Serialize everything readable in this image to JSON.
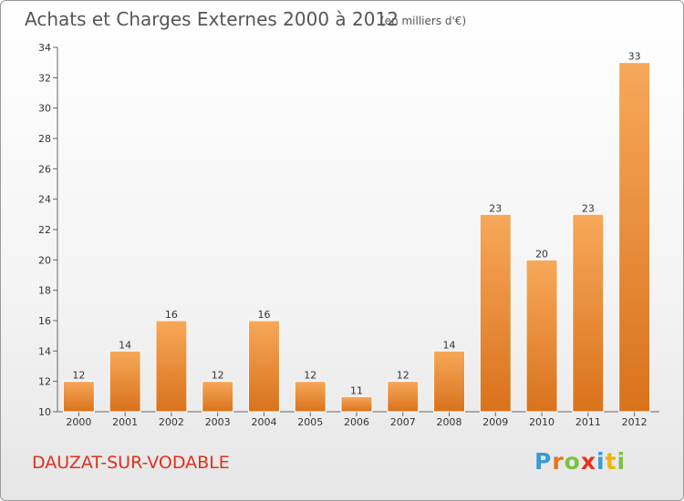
{
  "header": {
    "title": "Achats et Charges Externes 2000 à 2012",
    "unit_note": "(en milliers d'€)"
  },
  "footer": {
    "commune": "DAUZAT-SUR-VODABLE",
    "brand_letters": [
      {
        "ch": "P",
        "color": "#3a9ad9"
      },
      {
        "ch": "r",
        "color": "#e8731c"
      },
      {
        "ch": "o",
        "color": "#7cc242"
      },
      {
        "ch": "x",
        "color": "#e8311f"
      },
      {
        "ch": "i",
        "color": "#3a9ad9"
      },
      {
        "ch": "t",
        "color": "#f0b400"
      },
      {
        "ch": "i",
        "color": "#7cc242"
      }
    ]
  },
  "colors": {
    "bar_top": "#f7a85a",
    "bar_bottom": "#d9721b",
    "title": "#555555",
    "commune": "#e0301e"
  },
  "chart_data": {
    "type": "bar",
    "title": "Achats et Charges Externes 2000 à 2012",
    "subtitle": "(en milliers d'€)",
    "xlabel": "",
    "ylabel": "",
    "categories": [
      "2000",
      "2001",
      "2002",
      "2003",
      "2004",
      "2005",
      "2006",
      "2007",
      "2008",
      "2009",
      "2010",
      "2011",
      "2012"
    ],
    "values": [
      12,
      14,
      16,
      12,
      16,
      12,
      11,
      12,
      14,
      23,
      20,
      23,
      33
    ],
    "ylim": [
      10,
      34
    ],
    "yticks": [
      10,
      12,
      14,
      16,
      18,
      20,
      22,
      24,
      26,
      28,
      30,
      32,
      34
    ],
    "grid": false,
    "legend": "none"
  }
}
